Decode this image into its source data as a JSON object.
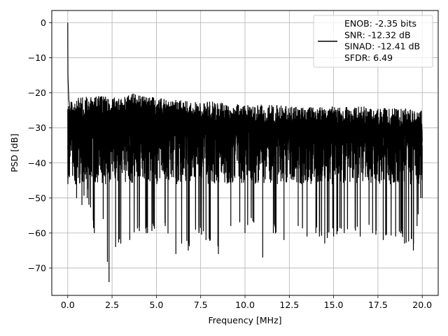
{
  "chart_data": {
    "type": "line",
    "title": "",
    "xlabel": "Frequency [MHz]",
    "ylabel": "PSD [dB]",
    "xlim": [
      -0.9,
      20.9
    ],
    "ylim": [
      -77.8,
      3.5
    ],
    "x_ticks": [
      0.0,
      2.5,
      5.0,
      7.5,
      10.0,
      12.5,
      15.0,
      17.5,
      20.0
    ],
    "x_tick_labels": [
      "0.0",
      "2.5",
      "5.0",
      "7.5",
      "10.0",
      "12.5",
      "15.0",
      "17.5",
      "20.0"
    ],
    "y_ticks": [
      0,
      -10,
      -20,
      -30,
      -40,
      -50,
      -60,
      -70
    ],
    "y_tick_labels": [
      "0",
      "−10",
      "−20",
      "−30",
      "−40",
      "−50",
      "−60",
      "−70"
    ],
    "grid": true,
    "legend_position": "top-right",
    "series": [
      {
        "color": "#000000",
        "x_range": [
          0.0,
          20.0
        ],
        "peak": {
          "x": 0.0,
          "y": 0
        },
        "lower_envelope": [
          [
            0.0,
            -36
          ],
          [
            0.1,
            -41
          ],
          [
            0.3,
            -40
          ],
          [
            0.5,
            -50
          ],
          [
            0.8,
            -52
          ],
          [
            1.1,
            -50
          ],
          [
            1.5,
            -60
          ],
          [
            2.0,
            -56
          ],
          [
            2.33,
            -74
          ],
          [
            2.7,
            -64
          ],
          [
            3.5,
            -62
          ],
          [
            4.5,
            -60
          ],
          [
            5.5,
            -58
          ],
          [
            6.1,
            -66
          ],
          [
            6.8,
            -65
          ],
          [
            7.4,
            -60
          ],
          [
            7.8,
            -62
          ],
          [
            8.5,
            -66
          ],
          [
            9.2,
            -58
          ],
          [
            10.0,
            -60
          ],
          [
            10.5,
            -57
          ],
          [
            11.0,
            -67
          ],
          [
            11.6,
            -60
          ],
          [
            12.2,
            -62
          ],
          [
            13.0,
            -58
          ],
          [
            13.5,
            -61
          ],
          [
            14.0,
            -60
          ],
          [
            14.5,
            -63
          ],
          [
            15.0,
            -61
          ],
          [
            15.6,
            -60
          ],
          [
            16.5,
            -61
          ],
          [
            17.2,
            -60
          ],
          [
            17.8,
            -62
          ],
          [
            18.5,
            -61
          ],
          [
            19.0,
            -63
          ],
          [
            19.5,
            -65
          ],
          [
            20.0,
            -50
          ]
        ],
        "upper_envelope": [
          [
            0.0,
            -23
          ],
          [
            0.2,
            -22
          ],
          [
            1.0,
            -21
          ],
          [
            2.0,
            -21
          ],
          [
            3.0,
            -21.5
          ],
          [
            3.7,
            -20
          ],
          [
            5.0,
            -21.5
          ],
          [
            6.0,
            -22
          ],
          [
            7.0,
            -22.5
          ],
          [
            8.0,
            -22.5
          ],
          [
            9.0,
            -23
          ],
          [
            10.0,
            -23
          ],
          [
            11.0,
            -23.5
          ],
          [
            12.0,
            -23.5
          ],
          [
            13.0,
            -24
          ],
          [
            14.0,
            -24
          ],
          [
            15.0,
            -24
          ],
          [
            16.0,
            -24
          ],
          [
            17.0,
            -24
          ],
          [
            18.0,
            -24.5
          ],
          [
            19.0,
            -24.5
          ],
          [
            20.0,
            -25
          ]
        ],
        "low_freq_decay": [
          [
            0.0,
            0
          ],
          [
            0.01,
            -15
          ],
          [
            0.03,
            -18
          ],
          [
            0.06,
            -22
          ],
          [
            0.1,
            -24
          ]
        ]
      }
    ],
    "legend": {
      "entries": [
        "ENOB: -2.35 bits",
        "SNR: -12.32 dB",
        "SINAD: -12.41 dB",
        "SFDR: 6.49"
      ]
    }
  }
}
